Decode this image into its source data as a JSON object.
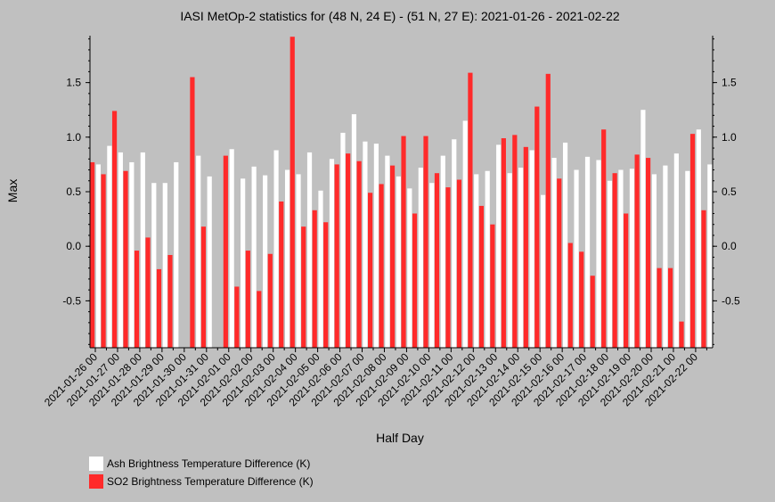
{
  "chart_data": {
    "type": "bar",
    "title": "IASI MetOp-2 statistics for (48 N, 24 E) - (51 N, 27 E): 2021-01-26 - 2021-02-22",
    "xlabel": "Half Day",
    "ylabel": "Max",
    "ylim": [
      -0.93,
      1.93
    ],
    "yticks": [
      -0.5,
      0.0,
      0.5,
      1.0,
      1.5
    ],
    "ytick_labels": [
      "-0.5",
      "0.0",
      "0.5",
      "1.0",
      "1.5"
    ],
    "xtick_labels": [
      "2021-01-26 00",
      "2021-01-27 00",
      "2021-01-28 00",
      "2021-01-29 00",
      "2021-01-30 00",
      "2021-01-31 00",
      "2021-02-01 00",
      "2021-02-02 00",
      "2021-02-03 00",
      "2021-02-04 00",
      "2021-02-05 00",
      "2021-02-06 00",
      "2021-02-07 00",
      "2021-02-08 00",
      "2021-02-09 00",
      "2021-02-10 00",
      "2021-02-11 00",
      "2021-02-12 00",
      "2021-02-13 00",
      "2021-02-14 00",
      "2021-02-15 00",
      "2021-02-16 00",
      "2021-02-17 00",
      "2021-02-18 00",
      "2021-02-19 00",
      "2021-02-20 00",
      "2021-02-21 00",
      "2021-02-22 00"
    ],
    "grid": false,
    "legend_position": "bottom-left",
    "series": [
      {
        "name": "Ash Brightness Temperature Difference (K)",
        "color": "#ffffff",
        "values": [
          0.75,
          0.92,
          0.86,
          0.77,
          0.86,
          0.58,
          0.58,
          0.77,
          null,
          0.83,
          0.64,
          null,
          0.89,
          0.62,
          0.73,
          0.65,
          0.88,
          0.7,
          0.66,
          0.86,
          0.51,
          0.8,
          1.04,
          1.21,
          0.96,
          0.94,
          0.83,
          0.64,
          0.53,
          0.72,
          0.58,
          0.83,
          0.98,
          1.15,
          0.66,
          0.69,
          0.93,
          0.67,
          0.72,
          0.88,
          0.47,
          0.81,
          0.95,
          0.7,
          0.82,
          0.79,
          0.6,
          0.7,
          0.71,
          1.25,
          0.66,
          0.74,
          0.85,
          0.69,
          1.07,
          0.75
        ]
      },
      {
        "name": "SO2 Brightness Temperature Difference (K)",
        "color": "#ff2a2a",
        "values": [
          0.77,
          0.66,
          1.24,
          0.69,
          -0.04,
          0.08,
          -0.21,
          -0.08,
          null,
          1.55,
          0.18,
          null,
          0.83,
          -0.37,
          -0.04,
          -0.41,
          -0.07,
          0.41,
          1.92,
          0.18,
          0.33,
          0.22,
          0.75,
          0.85,
          0.78,
          0.49,
          0.57,
          0.74,
          1.01,
          0.3,
          1.01,
          0.67,
          0.54,
          0.61,
          1.59,
          0.37,
          0.2,
          0.99,
          1.02,
          0.91,
          1.28,
          1.58,
          0.62,
          0.03,
          -0.05,
          -0.27,
          1.07,
          0.67,
          0.3,
          0.84,
          0.81,
          -0.2,
          -0.2,
          -0.69,
          1.03,
          0.33
        ]
      }
    ]
  }
}
